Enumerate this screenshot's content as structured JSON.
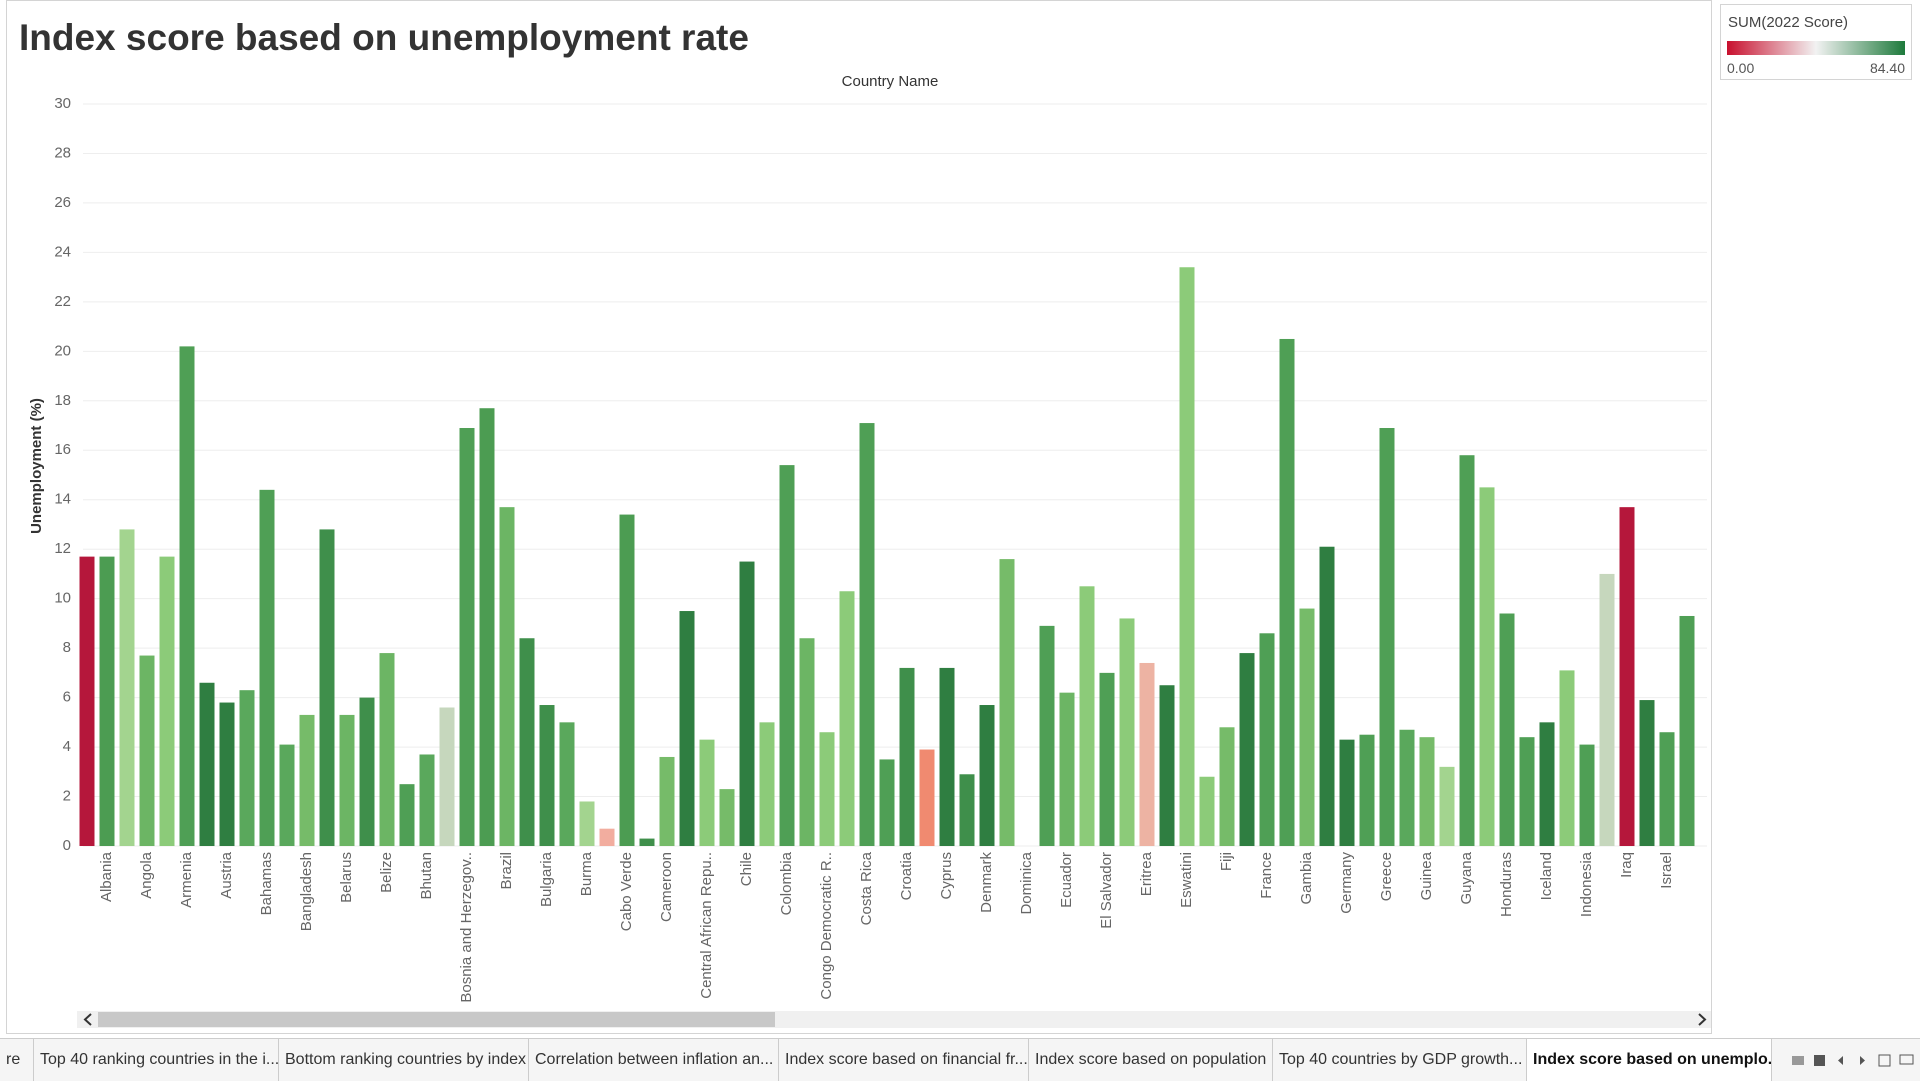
{
  "chart_data": {
    "type": "bar",
    "title": "Index score based on unemployment rate",
    "column_header": "Country Name",
    "y_label": "Unemployment (%)",
    "categories": [
      null,
      "Albania",
      null,
      "Angola",
      null,
      "Armenia",
      null,
      "Austria",
      null,
      "Bahamas",
      null,
      "Bangladesh",
      null,
      "Belarus",
      null,
      "Belize",
      null,
      "Bhutan",
      null,
      "Bosnia and Herzegov..",
      null,
      "Brazil",
      null,
      "Bulgaria",
      null,
      "Burma",
      null,
      "Cabo Verde",
      null,
      "Cameroon",
      null,
      "Central African Repu..",
      null,
      "Chile",
      null,
      "Colombia",
      null,
      "Congo Democratic R..",
      null,
      "Costa Rica",
      null,
      "Croatia",
      null,
      "Cyprus",
      null,
      "Denmark",
      null,
      "Dominica",
      null,
      "Ecuador",
      null,
      "El Salvador",
      null,
      "Eritrea",
      null,
      "Eswatini",
      null,
      "Fiji",
      null,
      "France",
      null,
      "Gambia",
      null,
      "Germany",
      null,
      "Greece",
      null,
      "Guinea",
      null,
      "Guyana",
      null,
      "Honduras",
      null,
      "Iceland",
      null,
      "Indonesia",
      null,
      "Iraq",
      null,
      "Israel",
      null
    ],
    "values": [
      11.7,
      11.7,
      12.8,
      7.7,
      11.7,
      20.2,
      6.6,
      5.8,
      6.3,
      14.4,
      4.1,
      5.3,
      12.8,
      5.3,
      6.0,
      7.8,
      2.5,
      3.7,
      5.6,
      16.9,
      17.7,
      13.7,
      8.4,
      5.7,
      5.0,
      1.8,
      0.7,
      13.4,
      0.3,
      3.6,
      9.5,
      4.3,
      2.3,
      11.5,
      5.0,
      15.4,
      8.4,
      4.6,
      10.3,
      17.1,
      3.5,
      7.2,
      3.9,
      7.2,
      2.9,
      5.7,
      11.6,
      null,
      8.9,
      6.2,
      10.5,
      7.0,
      9.2,
      7.4,
      6.5,
      23.4,
      2.8,
      4.8,
      7.8,
      8.6,
      20.5,
      9.6,
      12.1,
      4.3,
      4.5,
      16.9,
      4.7,
      4.4,
      3.2,
      15.8,
      14.5,
      9.4,
      4.4,
      5.0,
      7.1,
      4.1,
      11.0,
      13.7,
      5.9,
      4.6,
      9.3
    ],
    "colors": [
      "#b5173b",
      "#4c9c52",
      "#a3d48f",
      "#6cb564",
      "#8ccb79",
      "#4f9f55",
      "#2f7e41",
      "#2f7e41",
      "#5aa85c",
      "#4f9f55",
      "#5aa85c",
      "#76bb69",
      "#3f8f4b",
      "#6cb564",
      "#3f8f4b",
      "#6cb564",
      "#4f9f55",
      "#5aa85c",
      "#c6d7bd",
      "#4f9f55",
      "#4c9c52",
      "#6cb564",
      "#3f8f4b",
      "#3f8f4b",
      "#5aa85c",
      "#a3d48f",
      "#f2ad9f",
      "#4c9c52",
      "#3f8f4b",
      "#76bb69",
      "#2f7e41",
      "#8ccb79",
      "#76bb69",
      "#2f7e41",
      "#8ccb79",
      "#4f9f55",
      "#6cb564",
      "#8ccb79",
      "#8ccb79",
      "#4f9f55",
      "#4f9f55",
      "#3f8f4b",
      "#f08a70",
      "#2f7e41",
      "#3f8f4b",
      "#2f7e41",
      "#76bb69",
      null,
      "#4f9f55",
      "#6cb564",
      "#8ccb79",
      "#4f9f55",
      "#8ccb79",
      "#edb3a3",
      "#2f7e41",
      "#8ccb79",
      "#8ccb79",
      "#76bb69",
      "#2f7e41",
      "#4f9f55",
      "#4f9f55",
      "#76bb69",
      "#2f7e41",
      "#2f7e41",
      "#4f9f55",
      "#4f9f55",
      "#5aa85c",
      "#76bb69",
      "#a3d48f",
      "#4f9f55",
      "#8ccb79",
      "#4f9f55",
      "#4f9f55",
      "#2f7e41",
      "#8ccb79",
      "#4f9f55",
      "#c6d7bd",
      "#b5173b",
      "#2f7e41",
      "#4f9f55",
      "#4f9f55"
    ],
    "ylim": [
      0,
      30
    ],
    "yticks": [
      0,
      2,
      4,
      6,
      8,
      10,
      12,
      14,
      16,
      18,
      20,
      22,
      24,
      26,
      28,
      30
    ],
    "grid": true,
    "legend": {
      "title": "SUM(2022 Score)",
      "min_label": "0.00",
      "max_label": "84.40",
      "min_color": "#c8102e",
      "mid_color": "#f2f2f2",
      "max_color": "#1e7a3c"
    }
  },
  "tabs": [
    "re",
    "Top 40 ranking countries in the i...",
    "Bottom ranking countries by index",
    "Correlation between inflation an...",
    "Index score based on financial fr...",
    "Index score based on population",
    "Top 40 countries by GDP growth...",
    "Index score based on unemplo..."
  ],
  "active_tab": 7
}
